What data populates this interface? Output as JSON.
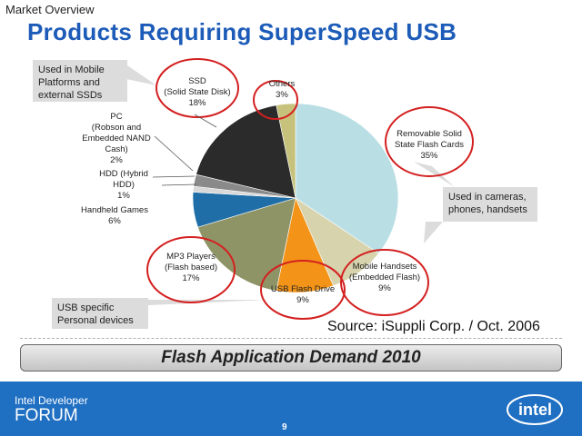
{
  "header": {
    "eyebrow": "Market Overview",
    "title": "Products Requiring SuperSpeed USB"
  },
  "callouts": {
    "mobile_platforms": [
      "Used in Mobile",
      "Platforms and",
      "external SSDs"
    ],
    "cameras": [
      "Used in cameras,",
      "phones, handsets"
    ],
    "usb_specific": [
      "USB specific",
      "Personal devices"
    ]
  },
  "source": "Source: iSuppli Corp. / Oct. 2006",
  "banner": "Flash Application Demand 2010",
  "footer": {
    "idf_line1": "Intel Developer",
    "idf_line2": "FORUM",
    "page": "9",
    "logo": "intel"
  },
  "chart_data": {
    "type": "pie",
    "title": "",
    "slices": [
      {
        "name": "Removable Solid State Flash Cards",
        "label_lines": [
          "Removable Solid",
          "State Flash Cards",
          "35%"
        ],
        "value": 35,
        "color": "#b9dfe4"
      },
      {
        "name": "Mobile Handsets (Embedded Flash)",
        "label_lines": [
          "Mobile Handsets",
          "(Embedded Flash)",
          "9%"
        ],
        "value": 9,
        "color": "#d7d3ad"
      },
      {
        "name": "USB Flash Drive",
        "label_lines": [
          "USB Flash Drive",
          "9%"
        ],
        "value": 9,
        "color": "#f39419"
      },
      {
        "name": "MP3 Players (Flash based)",
        "label_lines": [
          "MP3 Players",
          "(Flash based)",
          "17%"
        ],
        "value": 17,
        "color": "#8f9467"
      },
      {
        "name": "Handheld Games",
        "label_lines": [
          "Handheld Games",
          "6%"
        ],
        "value": 6,
        "color": "#1f6ea8"
      },
      {
        "name": "HDD (Hybrid HDD)",
        "label_lines": [
          "HDD (Hybrid",
          "HDD)",
          "1%"
        ],
        "value": 1,
        "color": "#d9d9d9"
      },
      {
        "name": "PC (Robson and Embedded NAND Cash)",
        "label_lines": [
          "PC",
          "(Robson and",
          "Embedded NAND",
          "Cash)",
          "2%"
        ],
        "value": 2,
        "color": "#8a8a8a"
      },
      {
        "name": "SSD (Solid State Disk)",
        "label_lines": [
          "SSD",
          "(Solid State Disk)",
          "18%"
        ],
        "value": 18,
        "color": "#2b2b2b"
      },
      {
        "name": "Others",
        "label_lines": [
          "Others",
          "3%"
        ],
        "value": 3,
        "color": "#c6c27c"
      }
    ]
  }
}
